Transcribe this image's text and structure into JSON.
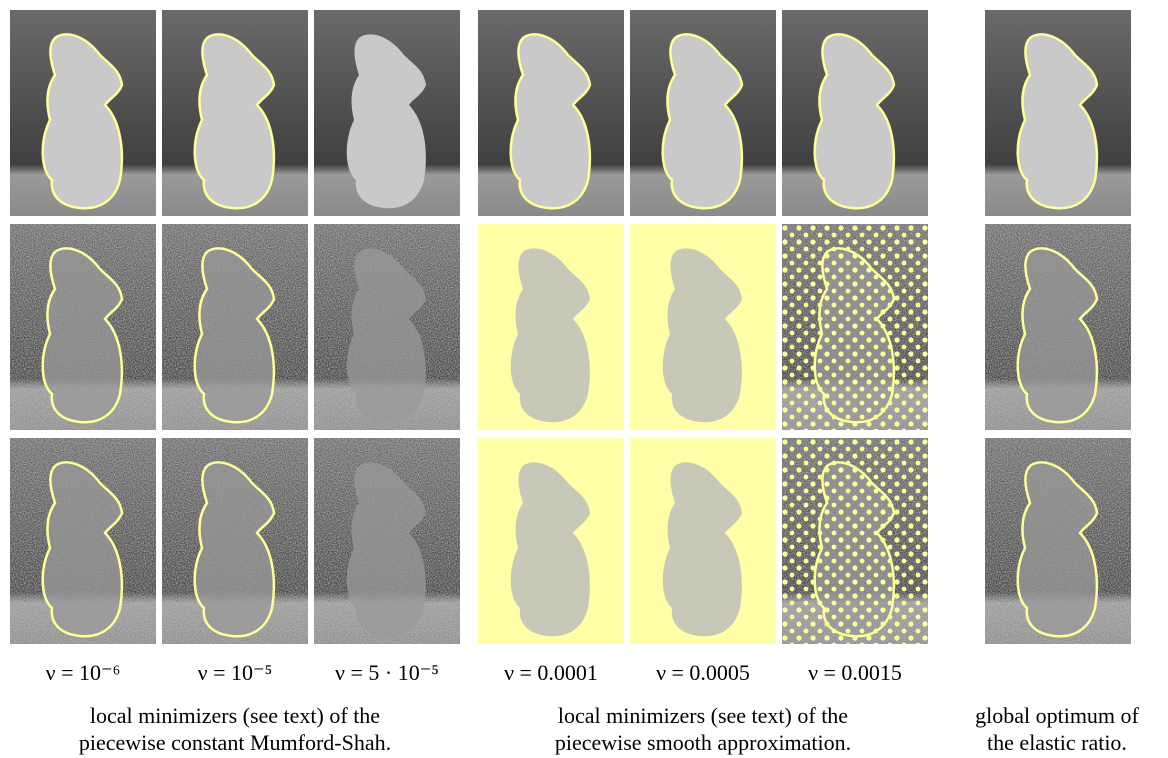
{
  "labels": [
    "ν = 10⁻⁶",
    "ν = 10⁻⁵",
    "ν = 5 · 10⁻⁵",
    "ν = 0.0001",
    "ν = 0.0005",
    "ν = 0.0015"
  ],
  "captions": [
    {
      "lines": [
        "local minimizers (see text) of the",
        "piecewise constant Mumford-Shah."
      ]
    },
    {
      "lines": [
        "local minimizers (see text) of the",
        "piecewise smooth approximation."
      ]
    },
    {
      "lines": [
        "global optimum of",
        "the elastic ratio."
      ]
    }
  ]
}
